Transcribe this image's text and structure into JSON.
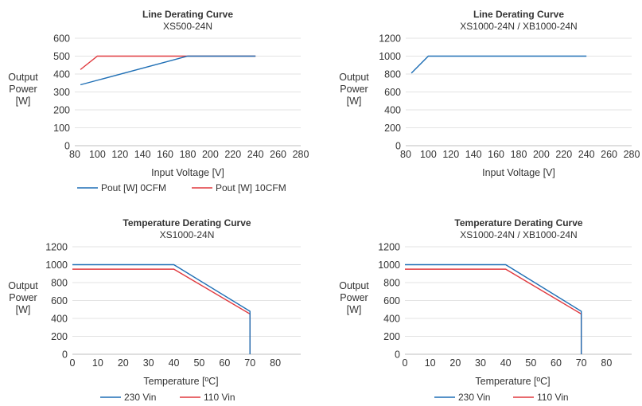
{
  "colors": {
    "blue": "#1f6fb5",
    "red": "#e0393e"
  },
  "chart_data": [
    {
      "type": "line",
      "title": "Line Derating Curve",
      "subtitle": "XS500-24N",
      "xlabel": "Input Voltage [V]",
      "ylabel": "Output Power [W]",
      "xlim": [
        80,
        280
      ],
      "ylim": [
        0,
        600
      ],
      "xticks": [
        80,
        100,
        120,
        140,
        160,
        180,
        200,
        220,
        240,
        260,
        280
      ],
      "yticks": [
        0,
        100,
        200,
        300,
        400,
        500,
        600
      ],
      "grid": true,
      "legend": "bottom",
      "series": [
        {
          "name": "Pout [W] 0CFM",
          "color": "blue",
          "x": [
            85,
            180,
            240
          ],
          "y": [
            340,
            500,
            500
          ]
        },
        {
          "name": "Pout [W] 10CFM",
          "color": "red",
          "x": [
            85,
            100,
            240
          ],
          "y": [
            425,
            500,
            500
          ]
        }
      ]
    },
    {
      "type": "line",
      "title": "Line Derating Curve",
      "subtitle": "XS1000-24N / XB1000-24N",
      "xlabel": "Input Voltage [V]",
      "ylabel": "Output Power [W]",
      "xlim": [
        80,
        280
      ],
      "ylim": [
        0,
        1200
      ],
      "xticks": [
        80,
        100,
        120,
        140,
        160,
        180,
        200,
        220,
        240,
        260,
        280
      ],
      "yticks": [
        0,
        200,
        400,
        600,
        800,
        1000,
        1200
      ],
      "grid": true,
      "legend": "none",
      "series": [
        {
          "color": "blue",
          "x": [
            85,
            100,
            240
          ],
          "y": [
            810,
            1000,
            1000
          ]
        }
      ]
    },
    {
      "type": "line",
      "title": "Temperature Derating Curve",
      "subtitle": "XS1000-24N",
      "xlabel": "Temperature [ºC]",
      "ylabel": "Output Power [W]",
      "xlim": [
        0,
        90
      ],
      "ylim": [
        0,
        1200
      ],
      "xticks": [
        0,
        10,
        20,
        30,
        40,
        50,
        60,
        70,
        80
      ],
      "yticks": [
        0,
        200,
        400,
        600,
        800,
        1000,
        1200
      ],
      "grid": true,
      "legend": "bottom",
      "series": [
        {
          "name": "230 Vin",
          "color": "blue",
          "x": [
            0,
            40,
            70,
            70
          ],
          "y": [
            1000,
            1000,
            480,
            0
          ]
        },
        {
          "name": "110 Vin",
          "color": "red",
          "x": [
            0,
            40,
            70,
            70
          ],
          "y": [
            950,
            950,
            450,
            0
          ]
        }
      ]
    },
    {
      "type": "line",
      "title": "Temperature Derating Curve",
      "subtitle": "XS1000-24N / XB1000-24N",
      "xlabel": "Temperature [ºC]",
      "ylabel": "Output Power [W]",
      "xlim": [
        0,
        90
      ],
      "ylim": [
        0,
        1200
      ],
      "xticks": [
        0,
        10,
        20,
        30,
        40,
        50,
        60,
        70,
        80
      ],
      "yticks": [
        0,
        200,
        400,
        600,
        800,
        1000,
        1200
      ],
      "grid": true,
      "legend": "bottom",
      "series": [
        {
          "name": "230 Vin",
          "color": "blue",
          "x": [
            0,
            40,
            70,
            70
          ],
          "y": [
            1000,
            1000,
            480,
            0
          ]
        },
        {
          "name": "110 Vin",
          "color": "red",
          "x": [
            0,
            40,
            70,
            70
          ],
          "y": [
            950,
            950,
            450,
            0
          ]
        }
      ]
    }
  ]
}
